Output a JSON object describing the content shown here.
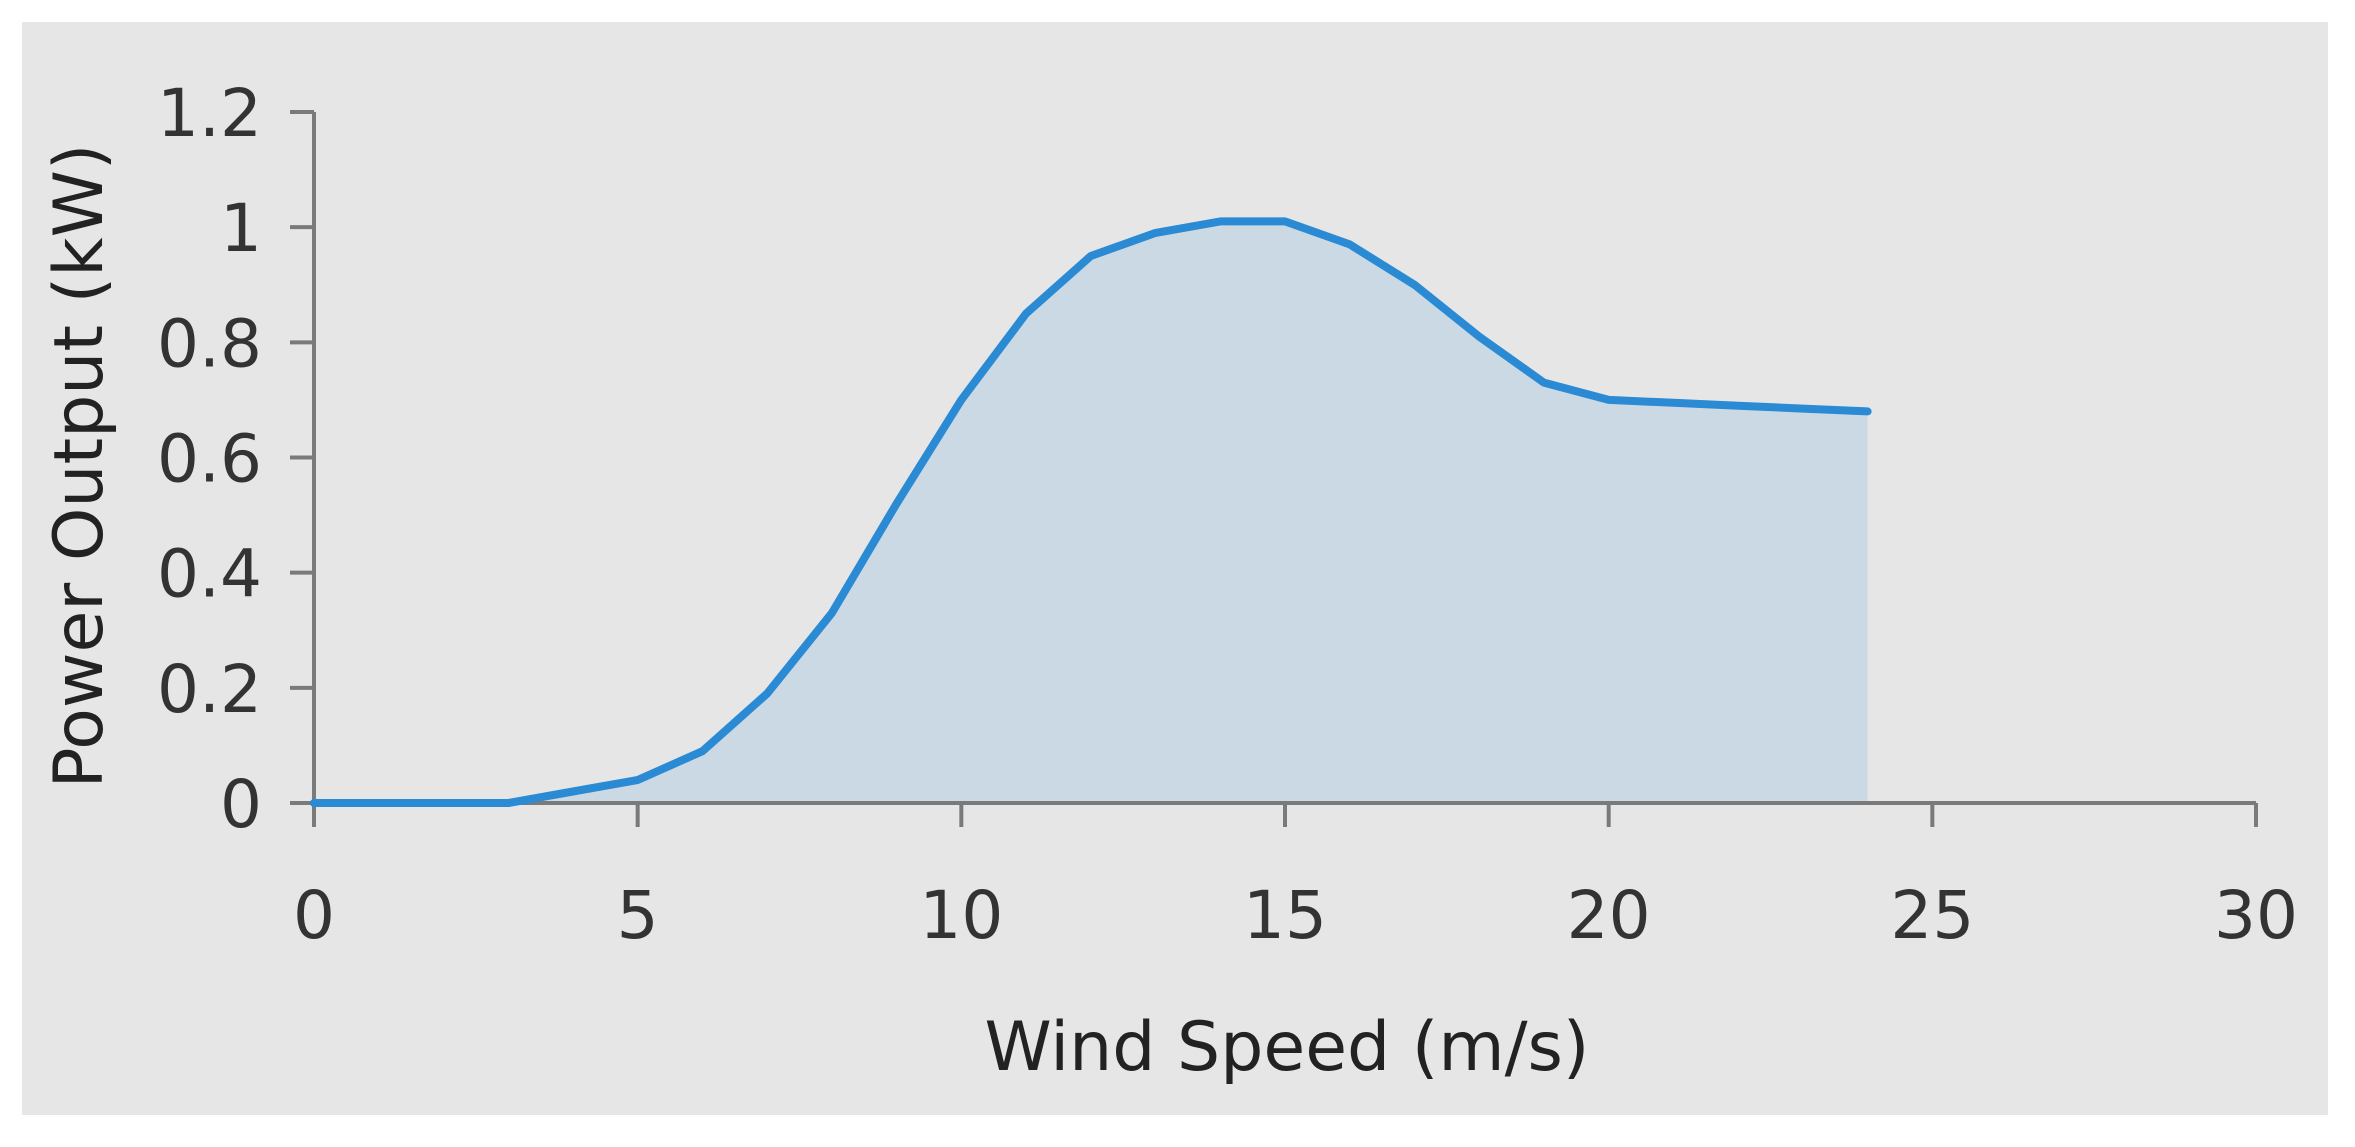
{
  "chart_data": {
    "type": "area",
    "title": "",
    "xlabel": "Wind Speed (m/s)",
    "ylabel": "Power Output (kW)",
    "xlim": [
      0,
      30
    ],
    "ylim": [
      0,
      1.2
    ],
    "x_ticks": [
      0,
      5,
      10,
      15,
      20,
      25,
      30
    ],
    "x_tick_labels": [
      "0",
      "5",
      "10",
      "15",
      "20",
      "25",
      "30"
    ],
    "y_ticks": [
      0,
      0.2,
      0.4,
      0.6,
      0.8,
      1,
      1.2
    ],
    "y_tick_labels": [
      "0",
      "0.2",
      "0.4",
      "0.6",
      "0.8",
      "1",
      "1.2"
    ],
    "grid": false,
    "legend": "none",
    "series": [
      {
        "x": [
          0,
          1,
          2,
          3,
          4,
          5,
          6,
          7,
          8,
          9,
          10,
          11,
          12,
          13,
          14,
          15,
          16,
          17,
          18,
          19,
          20,
          21,
          22,
          23,
          24
        ],
        "y": [
          0,
          0,
          0,
          0,
          0.02,
          0.04,
          0.09,
          0.19,
          0.33,
          0.52,
          0.7,
          0.85,
          0.95,
          0.99,
          1.01,
          1.01,
          0.97,
          0.9,
          0.81,
          0.73,
          0.7,
          0.695,
          0.69,
          0.685,
          0.68
        ],
        "color": "#2a8ad4",
        "fill_color": "#cbd9e5"
      }
    ]
  }
}
